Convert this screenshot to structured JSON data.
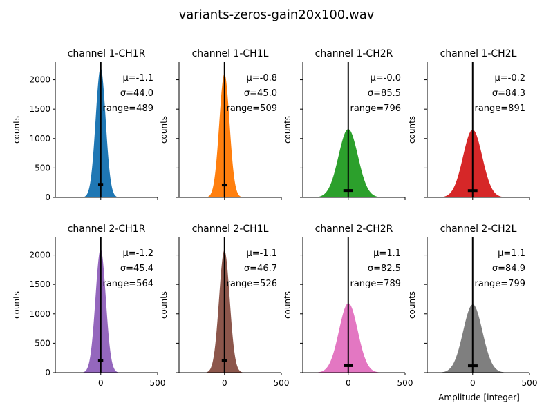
{
  "figure": {
    "title": "variants-zeros-gain20x100.wav",
    "xlabel": "Amplitude [integer]",
    "ylabel": "counts"
  },
  "chart_data": [
    {
      "type": "area",
      "title": "channel 1-CH1R",
      "mu_label": "μ=-1.1",
      "sigma_label": "σ=44.0",
      "range_label": "range=489",
      "mean": -1.1,
      "std": 44.0,
      "peak": 2200,
      "color": "#1f77b4",
      "xlim": [
        -400,
        500
      ],
      "ylim": [
        0,
        2300
      ],
      "xticks": [
        0,
        500
      ],
      "yticks": [
        0,
        500,
        1000,
        1500,
        2000
      ],
      "grid": false
    },
    {
      "type": "area",
      "title": "channel 1-CH1L",
      "mu_label": "μ=-0.8",
      "sigma_label": "σ=45.0",
      "range_label": "range=509",
      "mean": -0.8,
      "std": 45.0,
      "peak": 2100,
      "color": "#ff7f0e",
      "xlim": [
        -400,
        500
      ],
      "ylim": [
        0,
        2300
      ],
      "xticks": [
        0,
        500
      ],
      "yticks": [
        0,
        500,
        1000,
        1500,
        2000
      ],
      "grid": false
    },
    {
      "type": "area",
      "title": "channel 1-CH2R",
      "mu_label": "μ=-0.0",
      "sigma_label": "σ=85.5",
      "range_label": "range=796",
      "mean": 0.0,
      "std": 85.5,
      "peak": 1160,
      "color": "#2ca02c",
      "xlim": [
        -400,
        500
      ],
      "ylim": [
        0,
        2300
      ],
      "xticks": [
        0,
        500
      ],
      "yticks": [
        0,
        500,
        1000,
        1500,
        2000
      ],
      "grid": false
    },
    {
      "type": "area",
      "title": "channel 1-CH2L",
      "mu_label": "μ=-0.2",
      "sigma_label": "σ=84.3",
      "range_label": "range=891",
      "mean": -0.2,
      "std": 84.3,
      "peak": 1150,
      "color": "#d62728",
      "xlim": [
        -400,
        500
      ],
      "ylim": [
        0,
        2300
      ],
      "xticks": [
        0,
        500
      ],
      "yticks": [
        0,
        500,
        1000,
        1500,
        2000
      ],
      "grid": false
    },
    {
      "type": "area",
      "title": "channel 2-CH1R",
      "mu_label": "μ=-1.2",
      "sigma_label": "σ=45.4",
      "range_label": "range=564",
      "mean": -1.2,
      "std": 45.4,
      "peak": 2100,
      "color": "#9467bd",
      "xlim": [
        -400,
        500
      ],
      "ylim": [
        0,
        2300
      ],
      "xticks": [
        0,
        500
      ],
      "yticks": [
        0,
        500,
        1000,
        1500,
        2000
      ],
      "grid": false
    },
    {
      "type": "area",
      "title": "channel 2-CH1L",
      "mu_label": "μ=-1.1",
      "sigma_label": "σ=46.7",
      "range_label": "range=526",
      "mean": -1.1,
      "std": 46.7,
      "peak": 2080,
      "color": "#8c564b",
      "xlim": [
        -400,
        500
      ],
      "ylim": [
        0,
        2300
      ],
      "xticks": [
        0,
        500
      ],
      "yticks": [
        0,
        500,
        1000,
        1500,
        2000
      ],
      "grid": false
    },
    {
      "type": "area",
      "title": "channel 2-CH2R",
      "mu_label": "μ=1.1",
      "sigma_label": "σ=82.5",
      "range_label": "range=789",
      "mean": 1.1,
      "std": 82.5,
      "peak": 1180,
      "color": "#e377c2",
      "xlim": [
        -400,
        500
      ],
      "ylim": [
        0,
        2300
      ],
      "xticks": [
        0,
        500
      ],
      "yticks": [
        0,
        500,
        1000,
        1500,
        2000
      ],
      "grid": false
    },
    {
      "type": "area",
      "title": "channel 2-CH2L",
      "mu_label": "μ=1.1",
      "sigma_label": "σ=84.9",
      "range_label": "range=799",
      "mean": 1.1,
      "std": 84.9,
      "peak": 1160,
      "color": "#7f7f7f",
      "xlim": [
        -400,
        500
      ],
      "ylim": [
        0,
        2300
      ],
      "xticks": [
        0,
        500
      ],
      "yticks": [
        0,
        500,
        1000,
        1500,
        2000
      ],
      "grid": false
    }
  ]
}
